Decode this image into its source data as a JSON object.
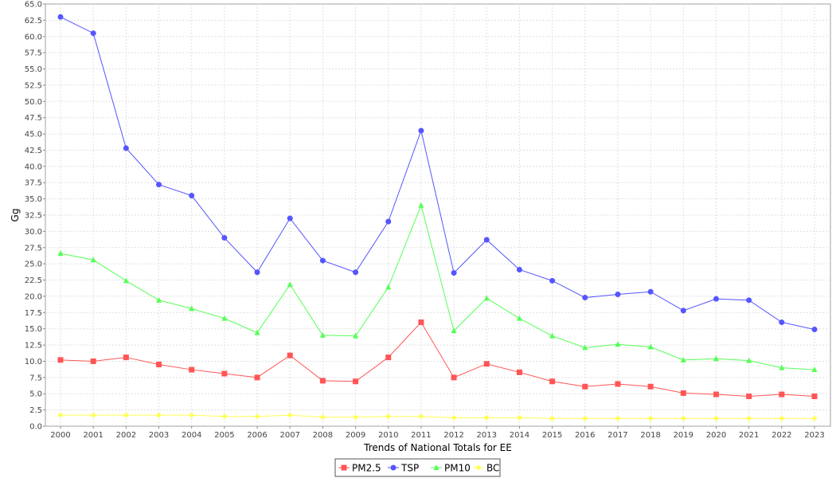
{
  "chart_data": {
    "type": "line",
    "title": "",
    "xlabel": "Trends of National Totals for EE",
    "ylabel": "Gg",
    "ylim": [
      0,
      65
    ],
    "ytick_step": 2.5,
    "grid": true,
    "legend_position": "bottom-center",
    "categories": [
      "2000",
      "2001",
      "2002",
      "2003",
      "2004",
      "2005",
      "2006",
      "2007",
      "2008",
      "2009",
      "2010",
      "2011",
      "2012",
      "2013",
      "2014",
      "2015",
      "2016",
      "2017",
      "2018",
      "2019",
      "2020",
      "2021",
      "2022",
      "2023"
    ],
    "series": [
      {
        "name": "PM2.5",
        "color": "#ff5555",
        "marker": "square",
        "values": [
          10.2,
          10.0,
          10.6,
          9.5,
          8.7,
          8.1,
          7.5,
          10.9,
          7.0,
          6.9,
          10.6,
          16.0,
          7.5,
          9.6,
          8.3,
          6.9,
          6.1,
          6.5,
          6.1,
          5.1,
          4.9,
          4.6,
          4.9,
          4.6
        ]
      },
      {
        "name": "TSP",
        "color": "#5555ff",
        "marker": "circle",
        "values": [
          63.0,
          60.5,
          42.8,
          37.2,
          35.5,
          29.0,
          23.7,
          32.0,
          25.5,
          23.7,
          31.5,
          45.5,
          23.6,
          28.7,
          24.1,
          22.4,
          19.8,
          20.3,
          20.7,
          17.8,
          19.6,
          19.4,
          16.0,
          14.9
        ]
      },
      {
        "name": "PM10",
        "color": "#55ff55",
        "marker": "triangle",
        "values": [
          26.6,
          25.6,
          22.4,
          19.4,
          18.1,
          16.6,
          14.4,
          21.8,
          14.0,
          13.9,
          21.4,
          34.0,
          14.7,
          19.7,
          16.6,
          13.9,
          12.1,
          12.6,
          12.2,
          10.2,
          10.4,
          10.1,
          9.0,
          8.7
        ]
      },
      {
        "name": "BC",
        "color": "#ffff55",
        "marker": "diamond",
        "values": [
          1.7,
          1.7,
          1.7,
          1.7,
          1.7,
          1.5,
          1.5,
          1.7,
          1.4,
          1.4,
          1.5,
          1.5,
          1.3,
          1.3,
          1.3,
          1.2,
          1.2,
          1.2,
          1.2,
          1.2,
          1.2,
          1.2,
          1.2,
          1.2
        ]
      }
    ]
  }
}
